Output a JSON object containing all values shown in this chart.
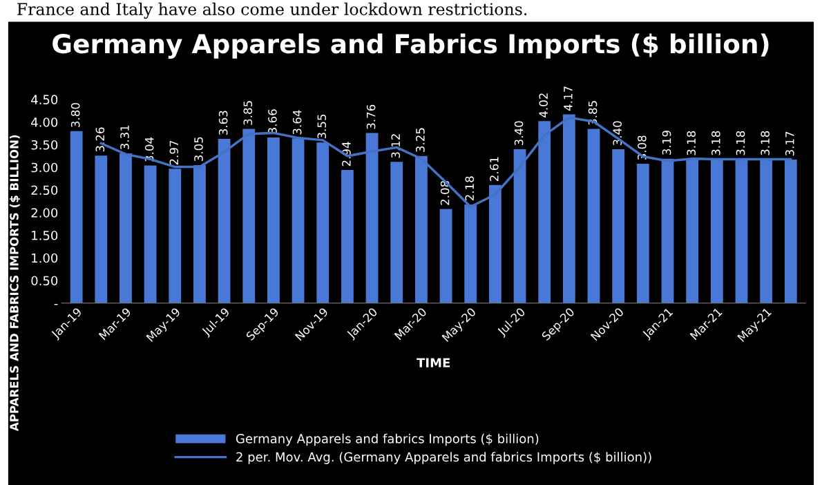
{
  "chart_data": {
    "type": "bar",
    "title": "Germany Apparels and Fabrics Imports ($ billion)",
    "xlabel": "TIME",
    "ylabel": "APPARELS AND FABRICS IMPORTS ($ BILLION)",
    "annotations": [
      "France and Italy have also come under lockdown restrictions."
    ],
    "categories": [
      "Jan-19",
      null,
      "Mar-19",
      null,
      "May-19",
      null,
      "Jul-19",
      null,
      "Sep-19",
      null,
      "Nov-19",
      null,
      "Jan-20",
      null,
      "Mar-20",
      null,
      "May-20",
      null,
      "Jul-20",
      null,
      "Sep-20",
      null,
      "Nov-20",
      null,
      "Jan-21",
      null,
      "Mar-21",
      null,
      "May-21",
      null
    ],
    "series": [
      {
        "name": "Germany Apparels and fabrics Imports ($ billion)",
        "color": "#4a78d6",
        "values": [
          3.8,
          3.26,
          3.31,
          3.04,
          2.97,
          3.05,
          3.63,
          3.85,
          3.66,
          3.64,
          3.55,
          2.94,
          3.76,
          3.12,
          3.25,
          2.08,
          2.18,
          2.61,
          3.4,
          4.02,
          4.17,
          3.85,
          3.4,
          3.08,
          3.19,
          3.18,
          3.18,
          3.18,
          3.18,
          3.17
        ],
        "value_labels": [
          "3.80",
          "3.26",
          "3.31",
          "3.04",
          "2.97",
          "3.05",
          "3.63",
          "3.85",
          "3.66",
          "3.64",
          "3.55",
          "2.94",
          "3.76",
          "3.12",
          "3.25",
          "2.08",
          "2.18",
          "2.61",
          "3.40",
          "4.02",
          "4.17",
          "3.85",
          "3.40",
          "3.08",
          "3.19",
          "3.18",
          "3.18",
          "3.18",
          "3.18",
          "3.17"
        ]
      },
      {
        "name": "2 per. Mov. Avg. (Germany Apparels and fabrics Imports ($ billion))",
        "type": "line",
        "color": "#4472c4",
        "values": [
          null,
          3.53,
          3.29,
          3.18,
          3.01,
          3.01,
          3.34,
          3.74,
          3.76,
          3.65,
          3.6,
          3.25,
          3.35,
          3.44,
          3.19,
          2.67,
          2.13,
          2.4,
          3.01,
          3.71,
          4.1,
          4.01,
          3.63,
          3.24,
          3.14,
          3.19,
          3.18,
          3.18,
          3.18,
          3.18
        ]
      }
    ],
    "ylim": [
      0,
      4.5
    ],
    "yticks": [
      {
        "value": 0,
        "label": "-"
      },
      {
        "value": 0.5,
        "label": "0.50"
      },
      {
        "value": 1,
        "label": "1.00"
      },
      {
        "value": 1.5,
        "label": "1.50"
      },
      {
        "value": 2,
        "label": "2.00"
      },
      {
        "value": 2.5,
        "label": "2.50"
      },
      {
        "value": 3,
        "label": "3.00"
      },
      {
        "value": 3.5,
        "label": "3.50"
      },
      {
        "value": 4,
        "label": "4.00"
      },
      {
        "value": 4.5,
        "label": "4.50"
      }
    ],
    "legend": "bottom",
    "grid": false,
    "marker": "none",
    "line_style": "solid"
  }
}
